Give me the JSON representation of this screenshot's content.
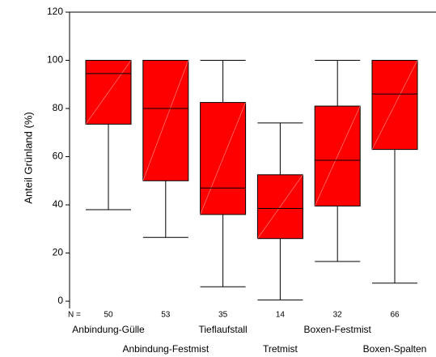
{
  "chart_data": {
    "type": "box",
    "ylabel": "Anteil Grünland (%)",
    "n_label": "N =",
    "categories": [
      "Anbindung-Gülle",
      "Anbindung-Festmist",
      "Tieflaufstall",
      "Tretmist",
      "Boxen-Festmist",
      "Boxen-Spalten"
    ],
    "n": [
      50,
      53,
      35,
      14,
      32,
      66
    ],
    "whisker_low": [
      38,
      26.5,
      6,
      0.5,
      16.5,
      7.5
    ],
    "q1": [
      73.5,
      50,
      36,
      26,
      39.5,
      63
    ],
    "median": [
      94.5,
      80,
      47,
      38.5,
      58.5,
      86
    ],
    "q3": [
      100,
      100,
      82.5,
      52.5,
      81,
      100
    ],
    "whisker_high": [
      100,
      100,
      100,
      74,
      100,
      100
    ],
    "color": "#ff0000",
    "ylim": [
      -3,
      120
    ],
    "yticks": [
      0,
      20,
      40,
      60,
      80,
      100,
      120
    ]
  }
}
